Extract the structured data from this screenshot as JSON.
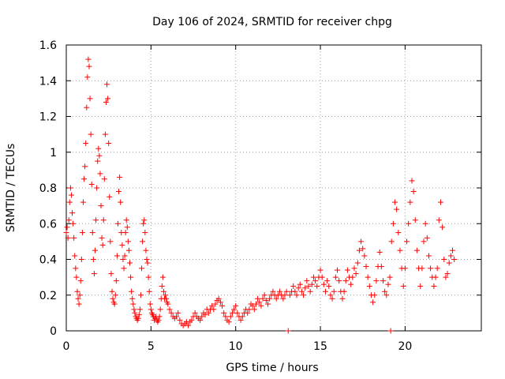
{
  "chart_data": {
    "type": "scatter",
    "title": "Day 106 of 2024, SRMTID for receiver chpg",
    "xlabel": "GPS time / hours",
    "ylabel": "SRMTID / TECUs",
    "xlim": [
      0,
      24.5
    ],
    "ylim": [
      0,
      1.6
    ],
    "xticks": [
      0,
      5,
      10,
      15,
      20
    ],
    "xtick_labels": [
      "0",
      "5",
      "10",
      "15",
      "20"
    ],
    "yticks": [
      0,
      0.2,
      0.4,
      0.6,
      0.8,
      1,
      1.2,
      1.4,
      1.6
    ],
    "ytick_labels": [
      "0",
      "0.2",
      "0.4",
      "0.6",
      "0.8",
      "1",
      "1.2",
      "1.4",
      "1.6"
    ],
    "grid": true,
    "marker": "plus",
    "color": "#ff0000",
    "series": [
      {
        "name": "SRMTID",
        "points": [
          [
            0.0,
            0.55
          ],
          [
            0.05,
            0.58
          ],
          [
            0.1,
            0.52
          ],
          [
            0.15,
            0.62
          ],
          [
            0.2,
            0.72
          ],
          [
            0.25,
            0.8
          ],
          [
            0.3,
            0.76
          ],
          [
            0.35,
            0.66
          ],
          [
            0.4,
            0.6
          ],
          [
            0.45,
            0.52
          ],
          [
            0.5,
            0.42
          ],
          [
            0.55,
            0.35
          ],
          [
            0.6,
            0.3
          ],
          [
            0.65,
            0.22
          ],
          [
            0.7,
            0.18
          ],
          [
            0.75,
            0.15
          ],
          [
            0.8,
            0.2
          ],
          [
            0.85,
            0.28
          ],
          [
            0.9,
            0.4
          ],
          [
            0.95,
            0.55
          ],
          [
            1.0,
            0.72
          ],
          [
            1.05,
            0.85
          ],
          [
            1.1,
            0.92
          ],
          [
            1.15,
            1.05
          ],
          [
            1.2,
            1.25
          ],
          [
            1.25,
            1.42
          ],
          [
            1.3,
            1.52
          ],
          [
            1.35,
            1.48
          ],
          [
            1.4,
            1.3
          ],
          [
            1.45,
            1.1
          ],
          [
            1.5,
            0.82
          ],
          [
            1.55,
            0.55
          ],
          [
            1.6,
            0.4
          ],
          [
            1.65,
            0.32
          ],
          [
            1.7,
            0.45
          ],
          [
            1.75,
            0.62
          ],
          [
            1.8,
            0.8
          ],
          [
            1.85,
            0.95
          ],
          [
            1.9,
            1.02
          ],
          [
            1.95,
            0.98
          ],
          [
            2.0,
            0.88
          ],
          [
            2.05,
            0.7
          ],
          [
            2.1,
            0.52
          ],
          [
            2.15,
            0.48
          ],
          [
            2.2,
            0.62
          ],
          [
            2.25,
            0.85
          ],
          [
            2.3,
            1.1
          ],
          [
            2.35,
            1.28
          ],
          [
            2.4,
            1.38
          ],
          [
            2.45,
            1.3
          ],
          [
            2.5,
            1.05
          ],
          [
            2.55,
            0.75
          ],
          [
            2.6,
            0.5
          ],
          [
            2.65,
            0.32
          ],
          [
            2.7,
            0.22
          ],
          [
            2.75,
            0.18
          ],
          [
            2.8,
            0.16
          ],
          [
            2.85,
            0.15
          ],
          [
            2.9,
            0.2
          ],
          [
            2.95,
            0.28
          ],
          [
            3.0,
            0.42
          ],
          [
            3.05,
            0.6
          ],
          [
            3.1,
            0.78
          ],
          [
            3.15,
            0.86
          ],
          [
            3.2,
            0.72
          ],
          [
            3.25,
            0.55
          ],
          [
            3.3,
            0.48
          ],
          [
            3.35,
            0.4
          ],
          [
            3.4,
            0.35
          ],
          [
            3.45,
            0.42
          ],
          [
            3.5,
            0.55
          ],
          [
            3.55,
            0.62
          ],
          [
            3.6,
            0.58
          ],
          [
            3.65,
            0.5
          ],
          [
            3.7,
            0.45
          ],
          [
            3.75,
            0.38
          ],
          [
            3.8,
            0.3
          ],
          [
            3.85,
            0.22
          ],
          [
            3.9,
            0.18
          ],
          [
            3.95,
            0.15
          ],
          [
            4.0,
            0.12
          ],
          [
            4.05,
            0.1
          ],
          [
            4.1,
            0.08
          ],
          [
            4.15,
            0.07
          ],
          [
            4.2,
            0.06
          ],
          [
            4.25,
            0.07
          ],
          [
            4.3,
            0.09
          ],
          [
            4.35,
            0.12
          ],
          [
            4.4,
            0.2
          ],
          [
            4.45,
            0.35
          ],
          [
            4.5,
            0.5
          ],
          [
            4.55,
            0.6
          ],
          [
            4.6,
            0.62
          ],
          [
            4.65,
            0.55
          ],
          [
            4.7,
            0.45
          ],
          [
            4.75,
            0.4
          ],
          [
            4.8,
            0.38
          ],
          [
            4.85,
            0.3
          ],
          [
            4.9,
            0.22
          ],
          [
            4.95,
            0.15
          ],
          [
            5.0,
            0.12
          ],
          [
            5.05,
            0.1
          ],
          [
            5.1,
            0.09
          ],
          [
            5.15,
            0.08
          ],
          [
            5.2,
            0.06
          ],
          [
            5.25,
            0.07
          ],
          [
            5.3,
            0.08
          ],
          [
            5.35,
            0.06
          ],
          [
            5.4,
            0.05
          ],
          [
            5.45,
            0.06
          ],
          [
            5.5,
            0.08
          ],
          [
            5.55,
            0.12
          ],
          [
            5.6,
            0.18
          ],
          [
            5.65,
            0.25
          ],
          [
            5.7,
            0.3
          ],
          [
            5.75,
            0.22
          ],
          [
            5.8,
            0.18
          ],
          [
            5.85,
            0.2
          ],
          [
            5.9,
            0.18
          ],
          [
            5.95,
            0.16
          ],
          [
            6.0,
            0.15
          ],
          [
            6.1,
            0.12
          ],
          [
            6.2,
            0.1
          ],
          [
            6.3,
            0.08
          ],
          [
            6.4,
            0.07
          ],
          [
            6.5,
            0.08
          ],
          [
            6.6,
            0.1
          ],
          [
            6.7,
            0.06
          ],
          [
            6.8,
            0.04
          ],
          [
            6.9,
            0.03
          ],
          [
            7.0,
            0.04
          ],
          [
            7.1,
            0.05
          ],
          [
            7.2,
            0.03
          ],
          [
            7.3,
            0.05
          ],
          [
            7.4,
            0.06
          ],
          [
            7.5,
            0.08
          ],
          [
            7.6,
            0.1
          ],
          [
            7.7,
            0.08
          ],
          [
            7.8,
            0.07
          ],
          [
            7.9,
            0.06
          ],
          [
            8.0,
            0.08
          ],
          [
            8.1,
            0.1
          ],
          [
            8.2,
            0.09
          ],
          [
            8.3,
            0.12
          ],
          [
            8.4,
            0.1
          ],
          [
            8.5,
            0.12
          ],
          [
            8.6,
            0.14
          ],
          [
            8.7,
            0.12
          ],
          [
            8.8,
            0.15
          ],
          [
            8.9,
            0.17
          ],
          [
            9.0,
            0.18
          ],
          [
            9.1,
            0.16
          ],
          [
            9.2,
            0.14
          ],
          [
            9.3,
            0.1
          ],
          [
            9.4,
            0.08
          ],
          [
            9.5,
            0.06
          ],
          [
            9.6,
            0.05
          ],
          [
            9.7,
            0.08
          ],
          [
            9.8,
            0.1
          ],
          [
            9.9,
            0.12
          ],
          [
            10.0,
            0.14
          ],
          [
            10.1,
            0.1
          ],
          [
            10.2,
            0.08
          ],
          [
            10.3,
            0.06
          ],
          [
            10.4,
            0.08
          ],
          [
            10.5,
            0.1
          ],
          [
            10.6,
            0.12
          ],
          [
            10.7,
            0.1
          ],
          [
            10.8,
            0.12
          ],
          [
            10.9,
            0.15
          ],
          [
            11.0,
            0.14
          ],
          [
            11.1,
            0.12
          ],
          [
            11.2,
            0.15
          ],
          [
            11.3,
            0.18
          ],
          [
            11.4,
            0.16
          ],
          [
            11.5,
            0.14
          ],
          [
            11.6,
            0.18
          ],
          [
            11.7,
            0.2
          ],
          [
            11.8,
            0.17
          ],
          [
            11.9,
            0.15
          ],
          [
            12.0,
            0.18
          ],
          [
            12.1,
            0.2
          ],
          [
            12.2,
            0.22
          ],
          [
            12.3,
            0.2
          ],
          [
            12.4,
            0.18
          ],
          [
            12.5,
            0.2
          ],
          [
            12.6,
            0.22
          ],
          [
            12.7,
            0.2
          ],
          [
            12.8,
            0.18
          ],
          [
            12.9,
            0.2
          ],
          [
            13.0,
            0.22
          ],
          [
            13.1,
            0.0
          ],
          [
            13.2,
            0.2
          ],
          [
            13.3,
            0.22
          ],
          [
            13.4,
            0.25
          ],
          [
            13.5,
            0.22
          ],
          [
            13.6,
            0.2
          ],
          [
            13.7,
            0.24
          ],
          [
            13.8,
            0.26
          ],
          [
            13.9,
            0.22
          ],
          [
            14.0,
            0.2
          ],
          [
            14.1,
            0.24
          ],
          [
            14.2,
            0.28
          ],
          [
            14.3,
            0.25
          ],
          [
            14.4,
            0.22
          ],
          [
            14.5,
            0.26
          ],
          [
            14.6,
            0.3
          ],
          [
            14.7,
            0.28
          ],
          [
            14.8,
            0.25
          ],
          [
            14.9,
            0.3
          ],
          [
            15.0,
            0.34
          ],
          [
            15.1,
            0.3
          ],
          [
            15.2,
            0.26
          ],
          [
            15.3,
            0.22
          ],
          [
            15.4,
            0.28
          ],
          [
            15.5,
            0.25
          ],
          [
            15.6,
            0.2
          ],
          [
            15.7,
            0.18
          ],
          [
            15.8,
            0.22
          ],
          [
            15.9,
            0.3
          ],
          [
            16.0,
            0.34
          ],
          [
            16.1,
            0.28
          ],
          [
            16.2,
            0.22
          ],
          [
            16.3,
            0.18
          ],
          [
            16.4,
            0.22
          ],
          [
            16.5,
            0.28
          ],
          [
            16.6,
            0.34
          ],
          [
            16.7,
            0.3
          ],
          [
            16.8,
            0.26
          ],
          [
            16.9,
            0.3
          ],
          [
            17.0,
            0.35
          ],
          [
            17.1,
            0.32
          ],
          [
            17.2,
            0.38
          ],
          [
            17.3,
            0.45
          ],
          [
            17.4,
            0.5
          ],
          [
            17.5,
            0.46
          ],
          [
            17.6,
            0.42
          ],
          [
            17.7,
            0.36
          ],
          [
            17.8,
            0.3
          ],
          [
            17.9,
            0.25
          ],
          [
            18.0,
            0.2
          ],
          [
            18.1,
            0.16
          ],
          [
            18.2,
            0.2
          ],
          [
            18.3,
            0.28
          ],
          [
            18.4,
            0.36
          ],
          [
            18.5,
            0.44
          ],
          [
            18.6,
            0.36
          ],
          [
            18.7,
            0.28
          ],
          [
            18.8,
            0.22
          ],
          [
            18.9,
            0.2
          ],
          [
            19.0,
            0.26
          ],
          [
            19.1,
            0.3
          ],
          [
            19.15,
            0.0
          ],
          [
            19.2,
            0.5
          ],
          [
            19.3,
            0.6
          ],
          [
            19.4,
            0.72
          ],
          [
            19.5,
            0.68
          ],
          [
            19.6,
            0.55
          ],
          [
            19.7,
            0.45
          ],
          [
            19.8,
            0.35
          ],
          [
            19.9,
            0.25
          ],
          [
            20.0,
            0.35
          ],
          [
            20.1,
            0.5
          ],
          [
            20.2,
            0.6
          ],
          [
            20.3,
            0.72
          ],
          [
            20.4,
            0.84
          ],
          [
            20.5,
            0.78
          ],
          [
            20.6,
            0.62
          ],
          [
            20.7,
            0.45
          ],
          [
            20.8,
            0.35
          ],
          [
            20.9,
            0.25
          ],
          [
            21.0,
            0.35
          ],
          [
            21.1,
            0.5
          ],
          [
            21.2,
            0.6
          ],
          [
            21.3,
            0.52
          ],
          [
            21.4,
            0.42
          ],
          [
            21.5,
            0.35
          ],
          [
            21.6,
            0.3
          ],
          [
            21.7,
            0.25
          ],
          [
            21.8,
            0.3
          ],
          [
            21.9,
            0.35
          ],
          [
            22.0,
            0.62
          ],
          [
            22.1,
            0.72
          ],
          [
            22.2,
            0.58
          ],
          [
            22.3,
            0.4
          ],
          [
            22.4,
            0.3
          ],
          [
            22.5,
            0.32
          ],
          [
            22.6,
            0.38
          ],
          [
            22.7,
            0.42
          ],
          [
            22.8,
            0.45
          ],
          [
            22.9,
            0.4
          ]
        ]
      }
    ]
  }
}
